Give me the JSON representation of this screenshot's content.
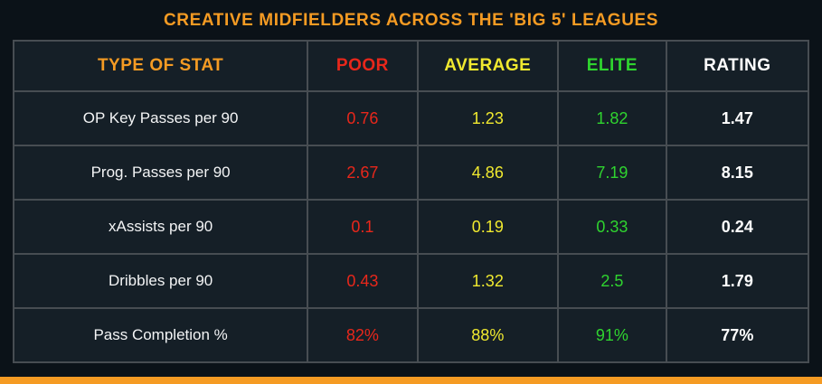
{
  "colors": {
    "accent_orange": "#f59b23",
    "poor_red": "#e8271b",
    "average_yellow": "#f0e92f",
    "elite_green": "#2fd42f",
    "rating_white": "#ffffff",
    "background": "#0b1218",
    "cell_background": "#151f27",
    "grid_border": "#474d52"
  },
  "chart_data": {
    "type": "table",
    "title": "CREATIVE MIDFIELDERS ACROSS THE 'BIG 5' LEAGUES",
    "columns": [
      "TYPE OF STAT",
      "POOR",
      "AVERAGE",
      "ELITE",
      "RATING"
    ],
    "rows": [
      [
        "OP Key Passes per 90",
        "0.76",
        "1.23",
        "1.82",
        "1.47"
      ],
      [
        "Prog. Passes per 90",
        "2.67",
        "4.86",
        "7.19",
        "8.15"
      ],
      [
        "xAssists per 90",
        "0.1",
        "0.19",
        "0.33",
        "0.24"
      ],
      [
        "Dribbles per 90",
        "0.43",
        "1.32",
        "2.5",
        "1.79"
      ],
      [
        "Pass Completion %",
        "82%",
        "88%",
        "91%",
        "77%"
      ]
    ]
  }
}
